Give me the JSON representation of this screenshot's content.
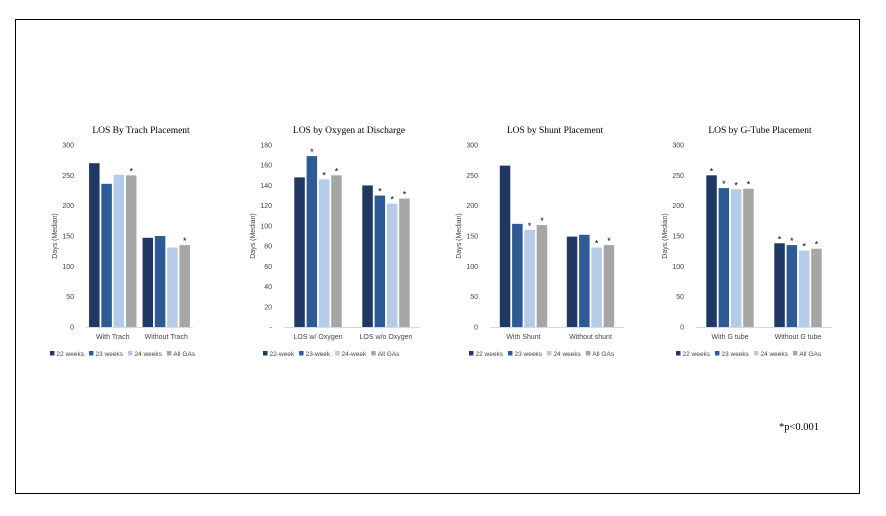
{
  "colors": [
    "#1f3864",
    "#2e5a96",
    "#b4cbe9",
    "#a6a6a6"
  ],
  "footnote": "*p<0.001",
  "chart_data": [
    {
      "type": "bar",
      "title": "LOS By Trach Placement",
      "ylabel": "Days (Median)",
      "ylim": [
        0,
        300
      ],
      "ticks": [
        "0",
        "50",
        "100",
        "150",
        "200",
        "250",
        "300"
      ],
      "categories": [
        "With Trach",
        "Without Trach"
      ],
      "series": [
        {
          "name": "22 weeks",
          "values": [
            270,
            147
          ]
        },
        {
          "name": "23 weeks",
          "values": [
            236,
            150
          ]
        },
        {
          "name": "24 weeks",
          "values": [
            251,
            131
          ]
        },
        {
          "name": "All GAs",
          "values": [
            250,
            135
          ]
        }
      ],
      "significance": [
        [
          false,
          false,
          false,
          true
        ],
        [
          false,
          false,
          false,
          true
        ]
      ],
      "legend": "bottom"
    },
    {
      "type": "bar",
      "title": "LOS by Oxygen at Discharge",
      "ylabel": "Days (Median)",
      "ylim": [
        0,
        180
      ],
      "ticks": [
        "-",
        "20",
        "40",
        "60",
        "80",
        "100",
        "120",
        "140",
        "160",
        "180"
      ],
      "categories": [
        "LOS w/ Oxygen",
        "LOS w/o Oxygen"
      ],
      "series": [
        {
          "name": "22-week",
          "values": [
            148,
            140
          ]
        },
        {
          "name": "23-week",
          "values": [
            169,
            130
          ]
        },
        {
          "name": "24-week",
          "values": [
            146,
            122
          ]
        },
        {
          "name": "All GAs",
          "values": [
            150,
            127
          ]
        }
      ],
      "significance": [
        [
          false,
          true,
          true,
          true
        ],
        [
          false,
          true,
          true,
          true
        ]
      ],
      "legend": "bottom"
    },
    {
      "type": "bar",
      "title": "LOS by Shunt Placement",
      "ylabel": "Days (Median)",
      "ylim": [
        0,
        300
      ],
      "ticks": [
        "0",
        "50",
        "100",
        "150",
        "200",
        "250",
        "300"
      ],
      "categories": [
        "With Shunt",
        "Without shunt"
      ],
      "series": [
        {
          "name": "22 weeks",
          "values": [
            266,
            149
          ]
        },
        {
          "name": "23 weeks",
          "values": [
            170,
            152
          ]
        },
        {
          "name": "24 weeks",
          "values": [
            160,
            131
          ]
        },
        {
          "name": "All GAs",
          "values": [
            168,
            135
          ]
        }
      ],
      "significance": [
        [
          false,
          false,
          true,
          true
        ],
        [
          false,
          false,
          true,
          true
        ]
      ],
      "legend": "bottom"
    },
    {
      "type": "bar",
      "title": "LOS by G-Tube Placement",
      "ylabel": "Days (Median)",
      "ylim": [
        0,
        300
      ],
      "ticks": [
        "0",
        "50",
        "100",
        "150",
        "200",
        "250",
        "300"
      ],
      "categories": [
        "With G tube",
        "Without G tube"
      ],
      "series": [
        {
          "name": "22 weeks",
          "values": [
            250,
            138
          ]
        },
        {
          "name": "23 weeks",
          "values": [
            229,
            135
          ]
        },
        {
          "name": "24 weeks",
          "values": [
            227,
            126
          ]
        },
        {
          "name": "All GAs",
          "values": [
            228,
            129
          ]
        }
      ],
      "significance": [
        [
          true,
          true,
          true,
          true
        ],
        [
          true,
          true,
          true,
          true
        ]
      ],
      "legend": "bottom"
    }
  ]
}
